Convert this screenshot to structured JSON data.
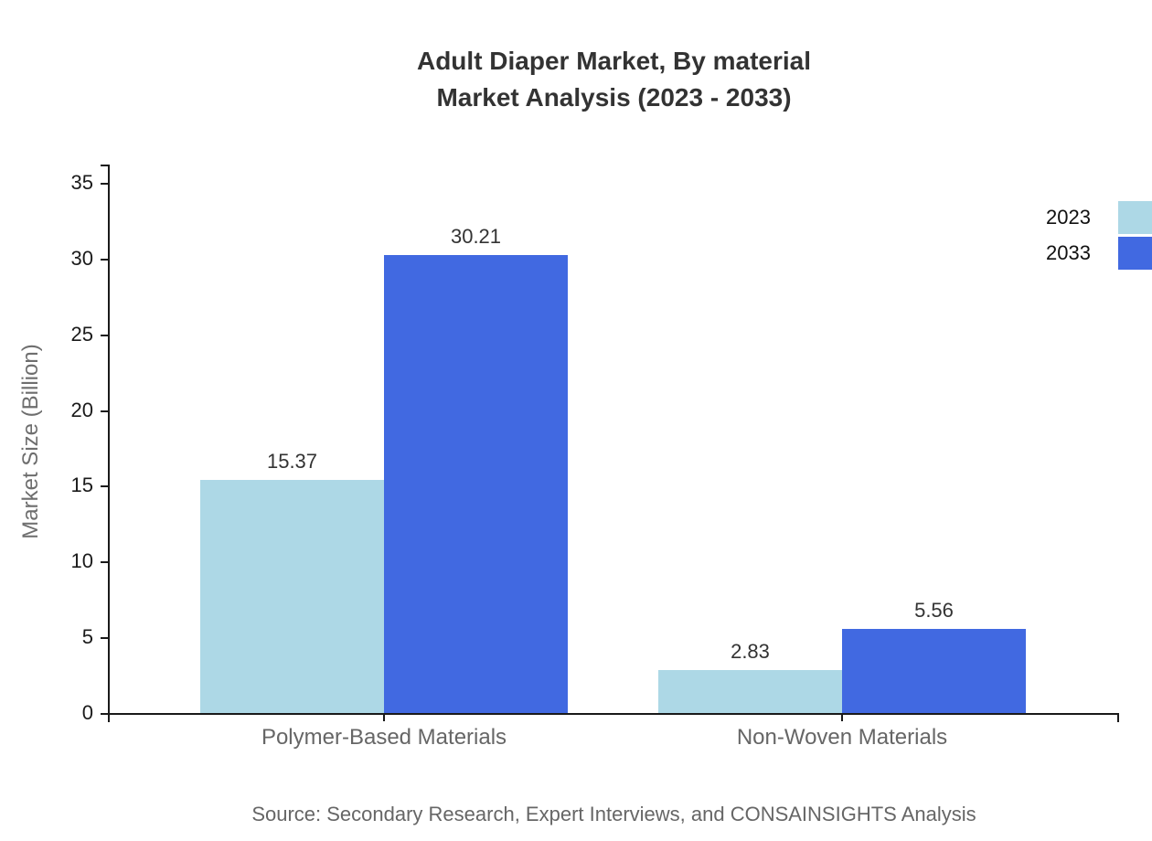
{
  "title": {
    "line1": "Adult Diaper Market, By material",
    "line2": "Market Analysis (2023 - 2033)"
  },
  "source": "Source: Secondary Research, Expert Interviews, and CONSAINSIGHTS Analysis",
  "colors": {
    "series_2023": "#ADD8E6",
    "series_2033": "#4169E1",
    "axis": "#1a1a1a",
    "title_text": "#333333",
    "muted_text": "#666666"
  },
  "chart_data": {
    "type": "bar",
    "title": "Adult Diaper Market, By material Market Analysis (2023 - 2033)",
    "categories": [
      "Polymer-Based Materials",
      "Non-Woven Materials"
    ],
    "series": [
      {
        "name": "2023",
        "color": "#ADD8E6",
        "values": [
          15.37,
          2.83
        ]
      },
      {
        "name": "2033",
        "color": "#4169E1",
        "values": [
          30.21,
          5.56
        ]
      }
    ],
    "xlabel": "",
    "ylabel": "Market Size (Billion)",
    "ylim": [
      0,
      35
    ],
    "yticks": [
      0,
      5,
      10,
      15,
      20,
      25,
      30,
      35
    ],
    "grid": false,
    "legend_position": "top-right",
    "value_labels": true
  }
}
